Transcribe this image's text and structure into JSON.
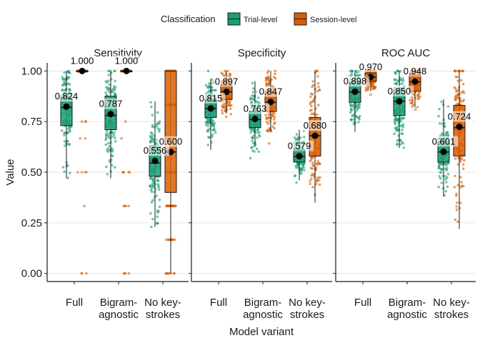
{
  "chart_data": {
    "type": "box",
    "xlabel": "Model variant",
    "ylabel": "Value",
    "ylim": [
      -0.04,
      1.04
    ],
    "y_ticks": [
      "0.00",
      "0.25",
      "0.50",
      "0.75",
      "1.00"
    ],
    "categories": [
      {
        "key": "full",
        "label_lines": [
          "Full"
        ]
      },
      {
        "key": "bigram",
        "label_lines": [
          "Bigram-",
          "agnostic"
        ]
      },
      {
        "key": "nokey",
        "label_lines": [
          "No key-",
          "strokes"
        ]
      }
    ],
    "legend": {
      "title": "Classification",
      "position": "top",
      "entries": [
        {
          "key": "trial",
          "label": "Trial-level",
          "color": "#1b9e77"
        },
        {
          "key": "session",
          "label": "Session-level",
          "color": "#d95f02"
        }
      ]
    },
    "grid": {
      "major_y": true,
      "major_x": false
    },
    "panels": [
      {
        "title": "Sensitivity",
        "groups": {
          "full": {
            "trial": {
              "median_label": "0.824",
              "mean": 0.824,
              "q1": 0.73,
              "median": 0.82,
              "q3": 0.87,
              "whisker_low": 0.47,
              "whisker_high": 1.0
            },
            "session": {
              "median_label": "1.000",
              "mean": 1.0,
              "q1": 1.0,
              "median": 1.0,
              "q3": 1.0,
              "whisker_low": 1.0,
              "whisker_high": 1.0
            }
          },
          "bigram": {
            "trial": {
              "median_label": "0.787",
              "mean": 0.787,
              "q1": 0.71,
              "median": 0.78,
              "q3": 0.875,
              "whisker_low": 0.47,
              "whisker_high": 1.0
            },
            "session": {
              "median_label": "1.000",
              "mean": 1.0,
              "q1": 1.0,
              "median": 1.0,
              "q3": 1.0,
              "whisker_low": 1.0,
              "whisker_high": 1.0
            }
          },
          "nokey": {
            "trial": {
              "median_label": "0.556",
              "mean": 0.556,
              "q1": 0.48,
              "median": 0.545,
              "q3": 0.63,
              "whisker_low": 0.23,
              "whisker_high": 0.85
            },
            "session": {
              "median_label": "0.600",
              "mean": 0.6,
              "q1": 0.4,
              "median": 0.6,
              "q3": 1.0,
              "whisker_low": 0.0,
              "whisker_high": 1.0
            }
          }
        }
      },
      {
        "title": "Specificity",
        "groups": {
          "full": {
            "trial": {
              "median_label": "0.815",
              "mean": 0.815,
              "q1": 0.77,
              "median": 0.815,
              "q3": 0.86,
              "whisker_low": 0.61,
              "whisker_high": 0.96
            },
            "session": {
              "median_label": "0.897",
              "mean": 0.897,
              "q1": 0.86,
              "median": 0.897,
              "q3": 0.93,
              "whisker_low": 0.79,
              "whisker_high": 1.0
            }
          },
          "bigram": {
            "trial": {
              "median_label": "0.763",
              "mean": 0.763,
              "q1": 0.72,
              "median": 0.76,
              "q3": 0.8,
              "whisker_low": 0.63,
              "whisker_high": 0.95
            },
            "session": {
              "median_label": "0.847",
              "mean": 0.847,
              "q1": 0.8,
              "median": 0.845,
              "q3": 0.895,
              "whisker_low": 0.7,
              "whisker_high": 1.0
            }
          },
          "nokey": {
            "trial": {
              "median_label": "0.579",
              "mean": 0.579,
              "q1": 0.55,
              "median": 0.578,
              "q3": 0.61,
              "whisker_low": 0.46,
              "whisker_high": 0.71
            },
            "session": {
              "median_label": "0.680",
              "mean": 0.68,
              "q1": 0.58,
              "median": 0.68,
              "q3": 0.77,
              "whisker_low": 0.35,
              "whisker_high": 1.0
            }
          }
        }
      },
      {
        "title": "ROC AUC",
        "groups": {
          "full": {
            "trial": {
              "median_label": "0.898",
              "mean": 0.898,
              "q1": 0.845,
              "median": 0.895,
              "q3": 0.945,
              "whisker_low": 0.7,
              "whisker_high": 1.0
            },
            "session": {
              "median_label": "0.970",
              "mean": 0.97,
              "q1": 0.95,
              "median": 0.97,
              "q3": 0.99,
              "whisker_low": 0.9,
              "whisker_high": 1.0
            }
          },
          "bigram": {
            "trial": {
              "median_label": "0.850",
              "mean": 0.85,
              "q1": 0.78,
              "median": 0.85,
              "q3": 0.905,
              "whisker_low": 0.62,
              "whisker_high": 1.0
            },
            "session": {
              "median_label": "0.948",
              "mean": 0.948,
              "q1": 0.9,
              "median": 0.946,
              "q3": 0.98,
              "whisker_low": 0.82,
              "whisker_high": 1.0
            }
          },
          "nokey": {
            "trial": {
              "median_label": "0.601",
              "mean": 0.601,
              "q1": 0.55,
              "median": 0.6,
              "q3": 0.65,
              "whisker_low": 0.38,
              "whisker_high": 0.86
            },
            "session": {
              "median_label": "0.724",
              "mean": 0.724,
              "q1": 0.58,
              "median": 0.72,
              "q3": 0.83,
              "whisker_low": 0.22,
              "whisker_high": 1.0
            }
          }
        }
      }
    ]
  }
}
